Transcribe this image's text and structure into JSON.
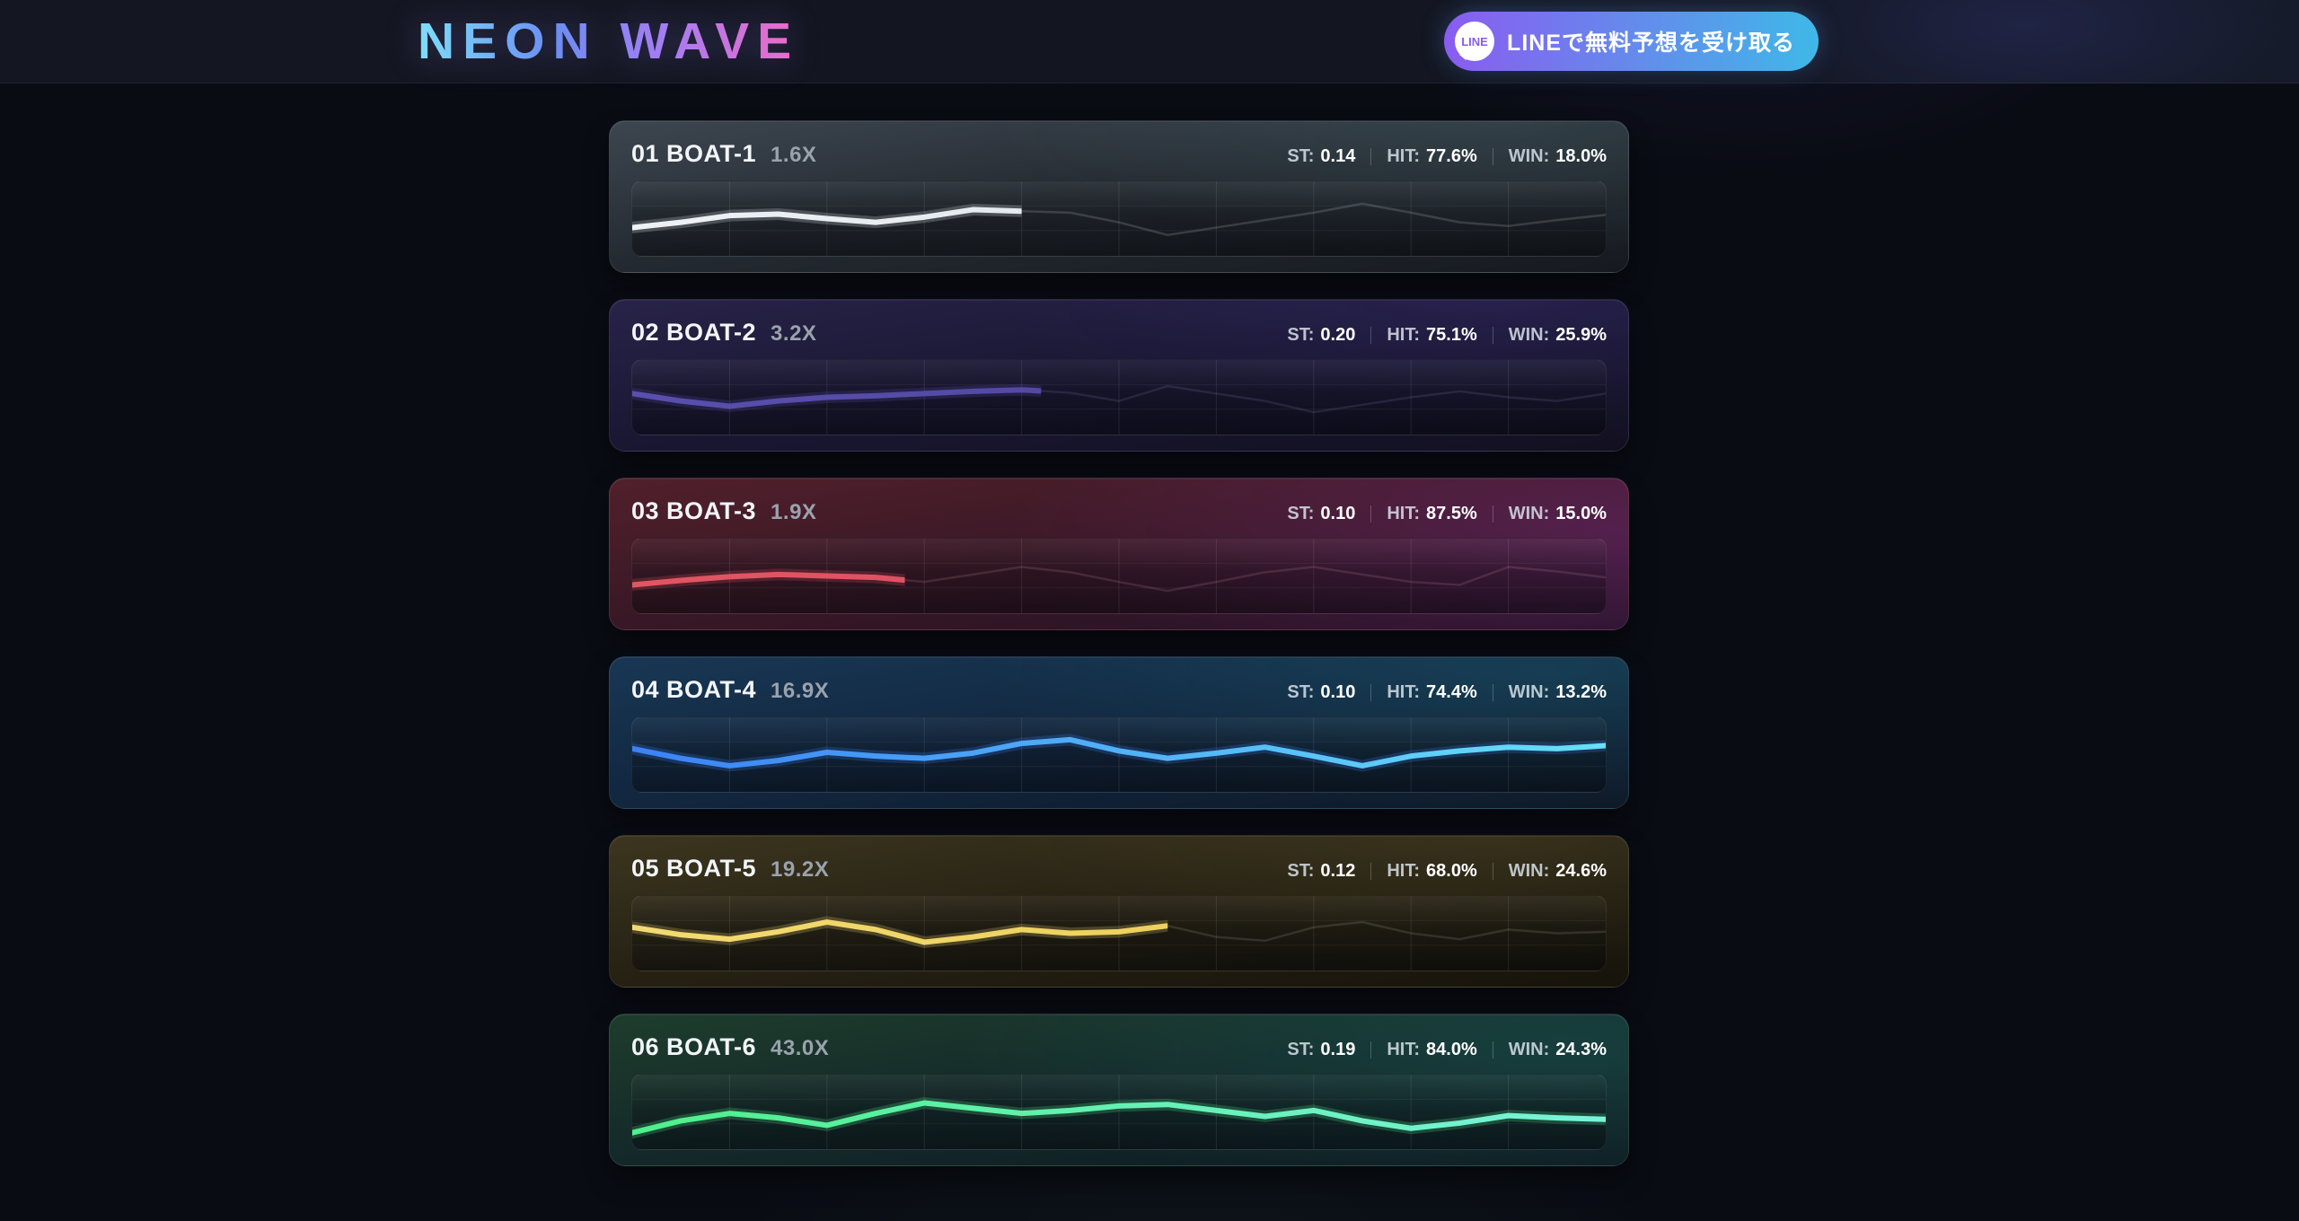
{
  "header": {
    "logo_text": "NEON WAVE",
    "logo_gradient": [
      "#7edef8",
      "#6b8ef2",
      "#a57df2",
      "#f06ac8"
    ],
    "line_button": {
      "label": "LINEで無料予想を受け取る",
      "icon_text": "LINE",
      "gradient": [
        "#8a5cf0",
        "#3fb8e8"
      ]
    }
  },
  "stat_labels": {
    "st": "ST:",
    "hit": "HIT:",
    "win": "WIN:"
  },
  "cards": [
    {
      "title": "01 BOAT-1",
      "multiplier": "1.6X",
      "st": "0.14",
      "hit": "77.6%",
      "win": "18.0%",
      "accent_start": "#eef2f6",
      "accent_end": "#d5dde4",
      "background": "radial-gradient(90% 160% at 88% 0%, rgba(120,170,180,0.16), rgba(0,0,0,0) 55%), linear-gradient(172deg, #3d4650 0%, #242a31 48%, #161a20 100%)",
      "sparkline": {
        "type": "line",
        "values": [
          38,
          45,
          54,
          56,
          50,
          45,
          52,
          62,
          60,
          58,
          45,
          28,
          38,
          48,
          58,
          70,
          58,
          45,
          40,
          48,
          55
        ],
        "progress": 0.4,
        "ghost_color": "rgba(255,255,255,0.15)"
      }
    },
    {
      "title": "02 BOAT-2",
      "multiplier": "3.2X",
      "st": "0.20",
      "hit": "75.1%",
      "win": "25.9%",
      "accent_start": "#5a4fae",
      "accent_end": "#4a4095",
      "background": "radial-gradient(90% 160% at 88% 0%, rgba(110,85,220,0.14), rgba(0,0,0,0) 55%), linear-gradient(172deg, #282348 0%, #1a1733 48%, #121020 100%)",
      "sparkline": {
        "type": "line",
        "values": [
          55,
          45,
          38,
          45,
          50,
          52,
          55,
          58,
          60,
          56,
          45,
          65,
          55,
          45,
          30,
          40,
          50,
          58,
          50,
          45,
          55
        ],
        "progress": 0.42,
        "ghost_color": "rgba(180,170,230,0.13)"
      }
    },
    {
      "title": "03 BOAT-3",
      "multiplier": "1.9X",
      "st": "0.10",
      "hit": "87.5%",
      "win": "15.0%",
      "accent_start": "#e25563",
      "accent_end": "#d84a62",
      "background": "radial-gradient(110% 190% at 100% 35%, rgba(175,60,180,0.28), rgba(0,0,0,0) 55%), linear-gradient(172deg, #51202b 0%, #391826 48%, #221126 100%)",
      "sparkline": {
        "type": "line",
        "values": [
          38,
          44,
          49,
          52,
          50,
          48,
          42,
          52,
          62,
          55,
          42,
          30,
          42,
          55,
          62,
          52,
          42,
          38,
          62,
          56,
          48
        ],
        "progress": 0.28,
        "ghost_color": "rgba(255,180,190,0.14)"
      }
    },
    {
      "title": "04 BOAT-4",
      "multiplier": "16.9X",
      "st": "0.10",
      "hit": "74.4%",
      "win": "13.2%",
      "accent_start": "#3b82f6",
      "accent_end": "#67e0f9",
      "background": "radial-gradient(100% 170% at 92% 10%, rgba(45,180,190,0.16), rgba(0,0,0,0) 55%), linear-gradient(172deg, #183754 0%, #122740 48%, #0e1826 100%)",
      "sparkline": {
        "type": "line",
        "values": [
          58,
          45,
          35,
          42,
          53,
          48,
          45,
          52,
          65,
          70,
          55,
          45,
          52,
          60,
          48,
          35,
          48,
          55,
          60,
          58,
          62
        ],
        "progress": 1.0,
        "ghost_color": "rgba(255,255,255,0.10)"
      }
    },
    {
      "title": "05 BOAT-5",
      "multiplier": "19.2X",
      "st": "0.12",
      "hit": "68.0%",
      "win": "24.6%",
      "accent_start": "#f3da72",
      "accent_end": "#e8c94f",
      "background": "radial-gradient(90% 160% at 88% 0%, rgba(200,180,100,0.10), rgba(0,0,0,0) 55%), linear-gradient(172deg, #3c361f 0%, #262113 48%, #16130a 100%)",
      "sparkline": {
        "type": "line",
        "values": [
          58,
          48,
          42,
          52,
          65,
          55,
          38,
          45,
          55,
          50,
          52,
          60,
          45,
          40,
          58,
          65,
          50,
          42,
          55,
          50,
          52
        ],
        "progress": 0.55,
        "ghost_color": "rgba(230,230,210,0.13)"
      }
    },
    {
      "title": "06 BOAT-6",
      "multiplier": "43.0X",
      "st": "0.19",
      "hit": "84.0%",
      "win": "24.3%",
      "accent_start": "#4ef08b",
      "accent_end": "#7bf2dc",
      "background": "radial-gradient(110% 180% at 95% 25%, rgba(45,190,170,0.16), rgba(0,0,0,0) 55%), linear-gradient(172deg, #1e3d2c 0%, #14292a 48%, #0e1a21 100%)",
      "sparkline": {
        "type": "line",
        "values": [
          22,
          38,
          48,
          42,
          32,
          48,
          62,
          55,
          48,
          52,
          58,
          60,
          52,
          44,
          52,
          38,
          28,
          35,
          45,
          42,
          40
        ],
        "progress": 1.0,
        "ghost_color": "rgba(255,255,255,0.12)"
      }
    }
  ]
}
